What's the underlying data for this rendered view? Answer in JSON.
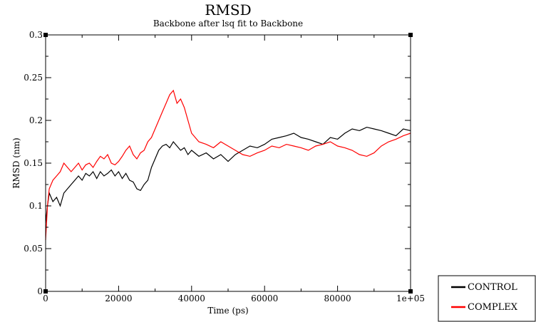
{
  "chart_data": {
    "type": "line",
    "title": "RMSD",
    "subtitle": "Backbone after lsq fit to Backbone",
    "xlabel": "Time (ps)",
    "ylabel": "RMSD (nm)",
    "xlim": [
      0,
      100000
    ],
    "ylim": [
      0,
      0.3
    ],
    "x_ticks": [
      {
        "value": 0,
        "label": "0"
      },
      {
        "value": 20000,
        "label": "20000"
      },
      {
        "value": 40000,
        "label": "40000"
      },
      {
        "value": 60000,
        "label": "60000"
      },
      {
        "value": 80000,
        "label": "80000"
      },
      {
        "value": 100000,
        "label": "1e+05"
      }
    ],
    "y_ticks": [
      {
        "value": 0,
        "label": "0"
      },
      {
        "value": 0.05,
        "label": "0.05"
      },
      {
        "value": 0.1,
        "label": "0.1"
      },
      {
        "value": 0.15,
        "label": "0.15"
      },
      {
        "value": 0.2,
        "label": "0.2"
      },
      {
        "value": 0.25,
        "label": "0.25"
      },
      {
        "value": 0.3,
        "label": "0.3"
      }
    ],
    "grid": false,
    "legend_position": "bottom-right-outside",
    "series": [
      {
        "name": "CONTROL",
        "color": "#000000",
        "x": [
          0,
          500,
          1000,
          2000,
          3000,
          4000,
          5000,
          6000,
          7000,
          8000,
          9000,
          10000,
          11000,
          12000,
          13000,
          14000,
          15000,
          16000,
          17000,
          18000,
          19000,
          20000,
          21000,
          22000,
          23000,
          24000,
          25000,
          26000,
          27000,
          28000,
          29000,
          30000,
          31000,
          32000,
          33000,
          34000,
          35000,
          36000,
          37000,
          38000,
          39000,
          40000,
          42000,
          44000,
          46000,
          48000,
          50000,
          52000,
          54000,
          56000,
          58000,
          60000,
          62000,
          64000,
          66000,
          68000,
          70000,
          72000,
          74000,
          76000,
          78000,
          80000,
          82000,
          84000,
          86000,
          88000,
          90000,
          92000,
          94000,
          96000,
          98000,
          100000
        ],
        "y": [
          0.08,
          0.1,
          0.115,
          0.105,
          0.11,
          0.1,
          0.115,
          0.12,
          0.125,
          0.13,
          0.135,
          0.13,
          0.138,
          0.135,
          0.14,
          0.132,
          0.14,
          0.135,
          0.138,
          0.142,
          0.135,
          0.14,
          0.132,
          0.138,
          0.13,
          0.128,
          0.12,
          0.118,
          0.125,
          0.13,
          0.145,
          0.155,
          0.165,
          0.17,
          0.172,
          0.168,
          0.175,
          0.17,
          0.165,
          0.168,
          0.16,
          0.165,
          0.158,
          0.162,
          0.155,
          0.16,
          0.152,
          0.16,
          0.165,
          0.17,
          0.168,
          0.172,
          0.178,
          0.18,
          0.182,
          0.185,
          0.18,
          0.178,
          0.175,
          0.172,
          0.18,
          0.178,
          0.185,
          0.19,
          0.188,
          0.192,
          0.19,
          0.188,
          0.185,
          0.182,
          0.19,
          0.188
        ]
      },
      {
        "name": "COMPLEX",
        "color": "#ff0000",
        "x": [
          0,
          500,
          1000,
          2000,
          3000,
          4000,
          5000,
          6000,
          7000,
          8000,
          9000,
          10000,
          11000,
          12000,
          13000,
          14000,
          15000,
          16000,
          17000,
          18000,
          19000,
          20000,
          21000,
          22000,
          23000,
          24000,
          25000,
          26000,
          27000,
          28000,
          29000,
          30000,
          31000,
          32000,
          33000,
          34000,
          35000,
          36000,
          37000,
          38000,
          39000,
          40000,
          42000,
          44000,
          46000,
          48000,
          50000,
          52000,
          54000,
          56000,
          58000,
          60000,
          62000,
          64000,
          66000,
          68000,
          70000,
          72000,
          74000,
          76000,
          78000,
          80000,
          82000,
          84000,
          86000,
          88000,
          90000,
          92000,
          94000,
          96000,
          98000,
          100000
        ],
        "y": [
          0.06,
          0.1,
          0.12,
          0.13,
          0.135,
          0.14,
          0.15,
          0.145,
          0.14,
          0.145,
          0.15,
          0.142,
          0.148,
          0.15,
          0.145,
          0.152,
          0.158,
          0.155,
          0.16,
          0.15,
          0.148,
          0.152,
          0.158,
          0.165,
          0.17,
          0.16,
          0.155,
          0.162,
          0.165,
          0.175,
          0.18,
          0.19,
          0.2,
          0.21,
          0.22,
          0.23,
          0.235,
          0.22,
          0.225,
          0.215,
          0.2,
          0.185,
          0.175,
          0.172,
          0.168,
          0.175,
          0.17,
          0.165,
          0.16,
          0.158,
          0.162,
          0.165,
          0.17,
          0.168,
          0.172,
          0.17,
          0.168,
          0.165,
          0.17,
          0.172,
          0.175,
          0.17,
          0.168,
          0.165,
          0.16,
          0.158,
          0.162,
          0.17,
          0.175,
          0.178,
          0.182,
          0.185
        ]
      }
    ]
  }
}
